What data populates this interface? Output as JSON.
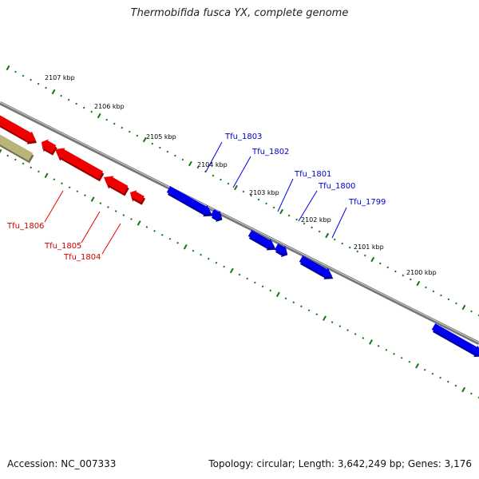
{
  "title": "Thermobifida fusca YX, complete genome",
  "footer": {
    "accession": "Accession: NC_007333",
    "stats": "Topology: circular; Length: 3,642,249 bp; Genes: 3,176"
  },
  "colors": {
    "forward_gene": "#0000ee",
    "reverse_gene": "#ee0000",
    "other_feature": "#b8b47a",
    "tick": "#117711",
    "backbone": "#777777"
  },
  "kbp_labels": [
    "2107 kbp",
    "2106 kbp",
    "2105 kbp",
    "2104 kbp",
    "2103 kbp",
    "2102 kbp",
    "2101 kbp",
    "2100 kbp"
  ],
  "genes_forward": [
    {
      "name": "Tfu_1803"
    },
    {
      "name": "Tfu_1802"
    },
    {
      "name": "Tfu_1801"
    },
    {
      "name": "Tfu_1800"
    },
    {
      "name": "Tfu_1799"
    }
  ],
  "genes_reverse": [
    {
      "name": "Tfu_1806"
    },
    {
      "name": "Tfu_1805"
    },
    {
      "name": "Tfu_1804"
    }
  ]
}
